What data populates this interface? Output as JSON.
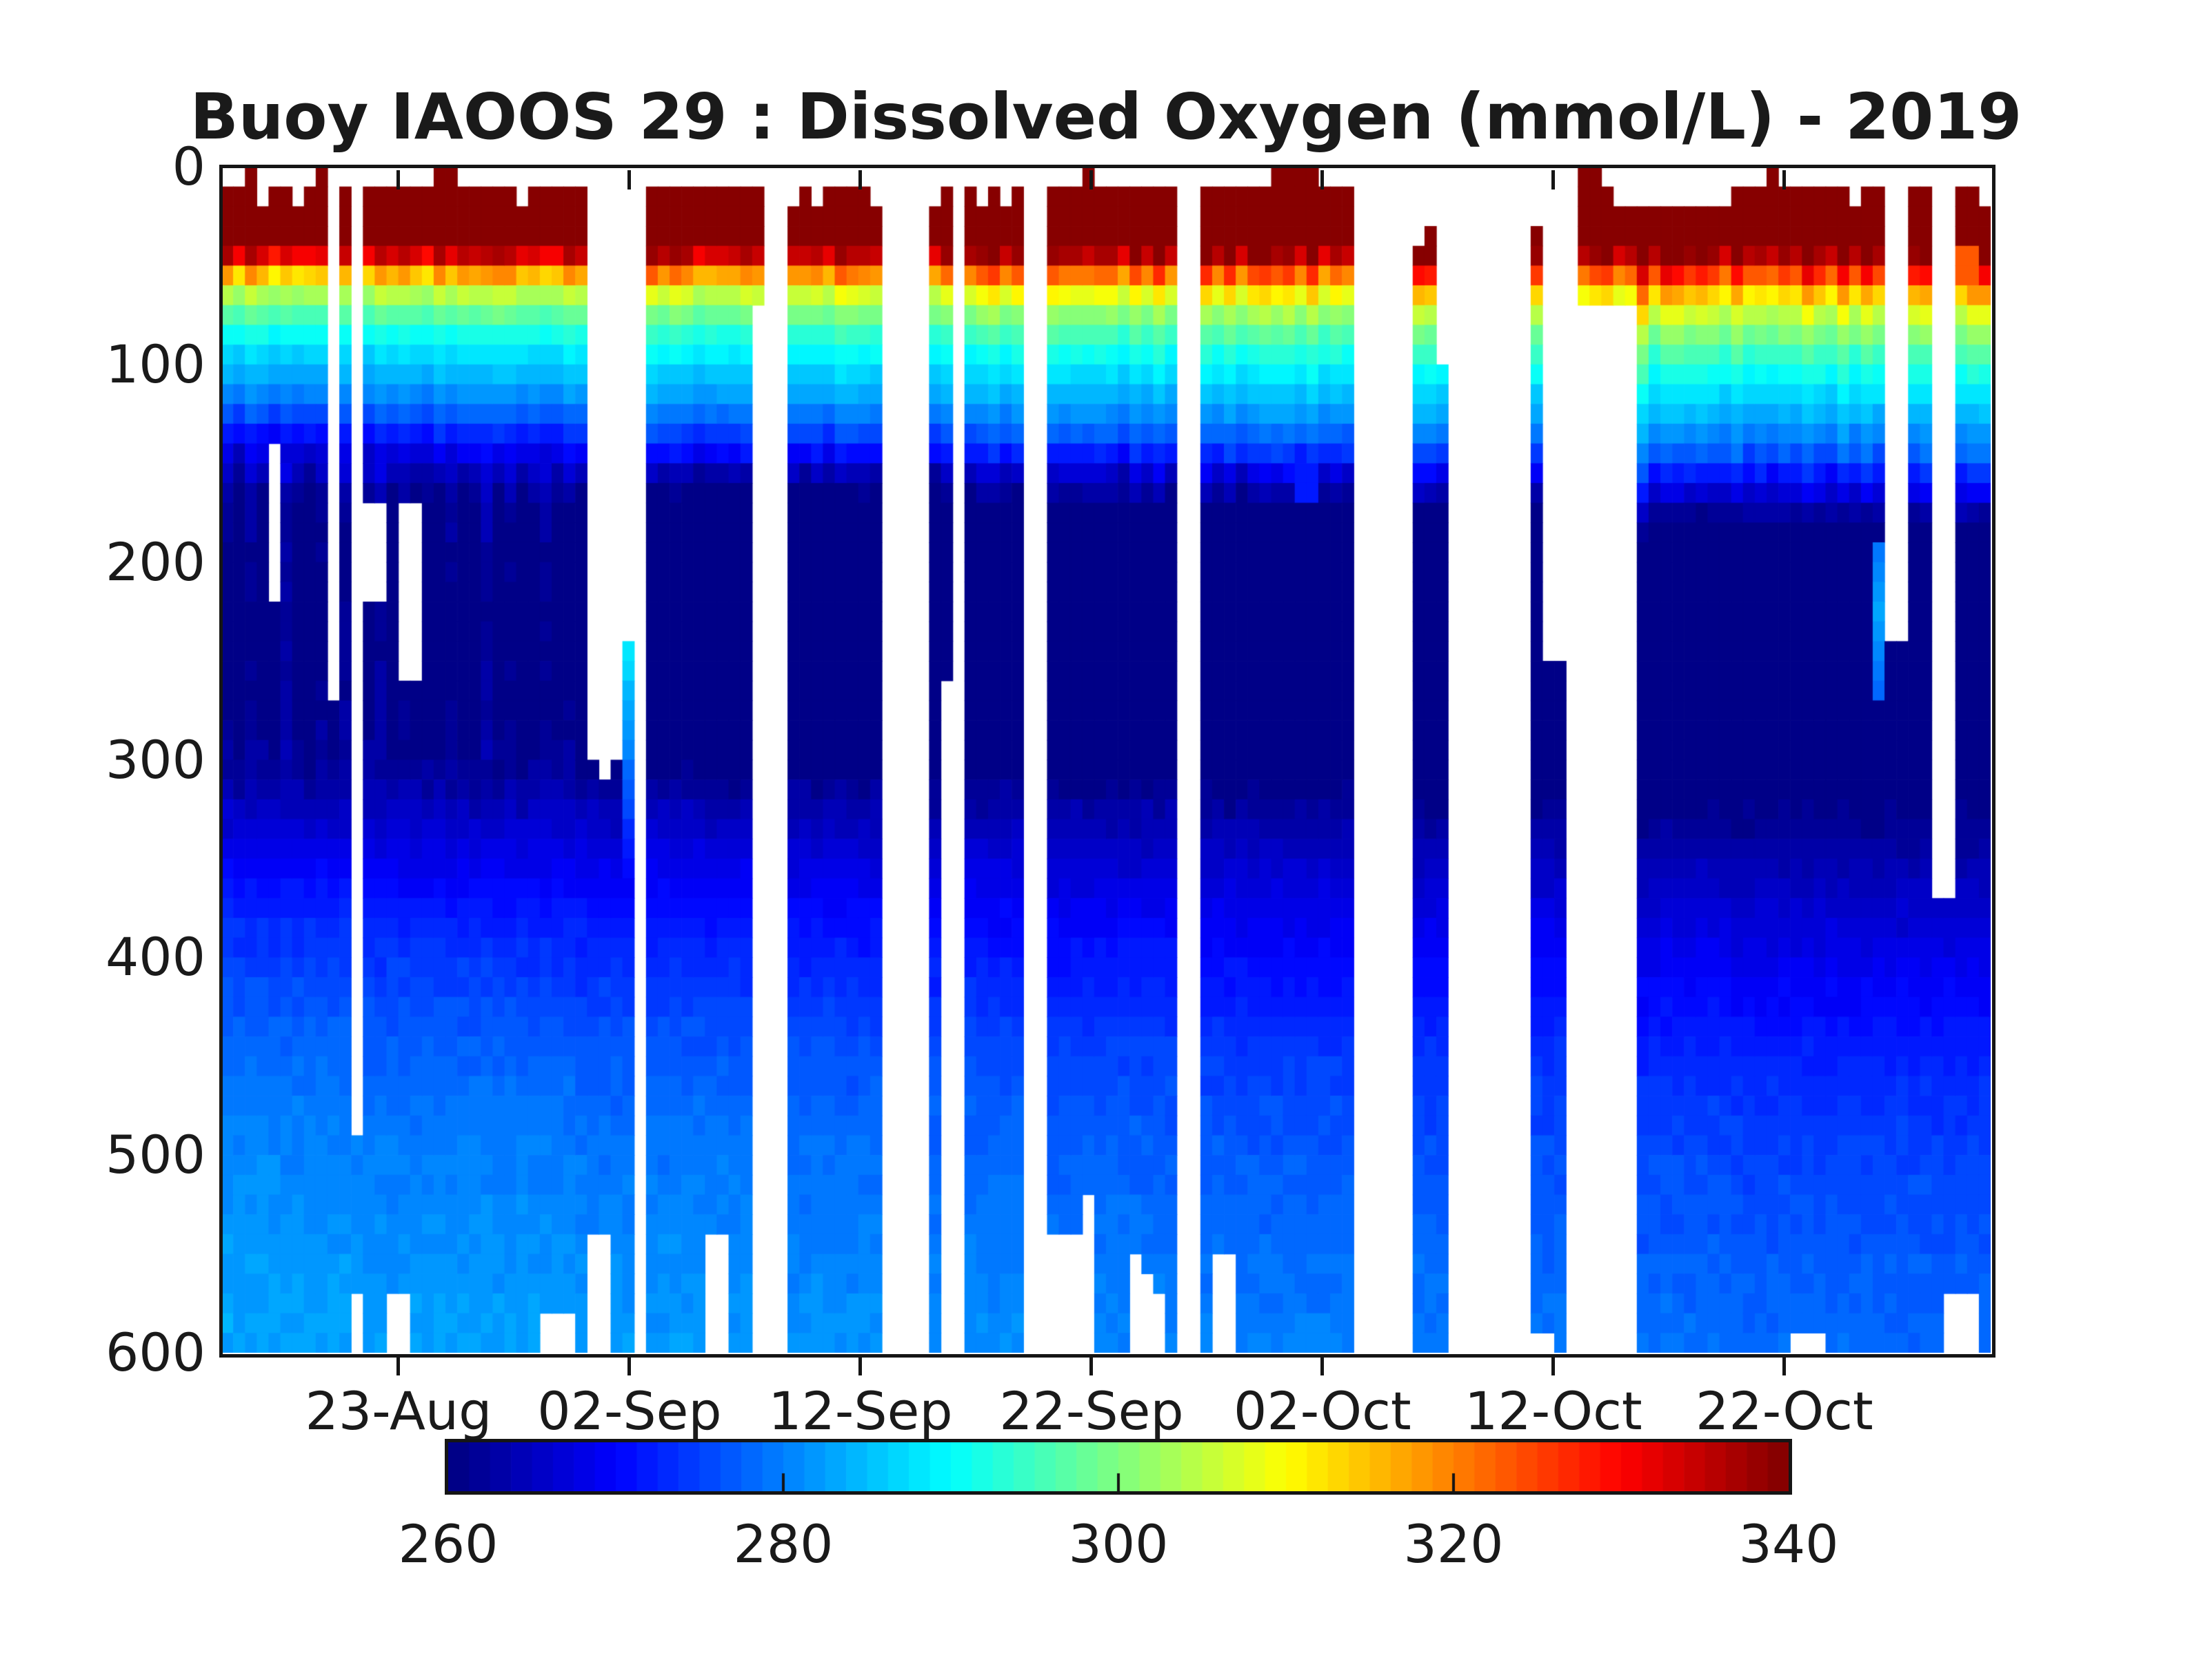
{
  "chart_data": {
    "type": "heatmap",
    "title": "Buoy IAOOS 29 : Dissolved Oxygen (mmol/L) - 2019",
    "x_axis": {
      "tick_labels": [
        "23-Aug",
        "02-Sep",
        "12-Sep",
        "22-Sep",
        "02-Oct",
        "12-Oct",
        "22-Oct"
      ],
      "tick_days": [
        0,
        10,
        20,
        30,
        40,
        50,
        60
      ],
      "start_day": -7.67,
      "end_day": 68.93
    },
    "y_axis": {
      "tick_values": [
        0,
        100,
        200,
        300,
        400,
        500,
        600
      ],
      "min": 0,
      "max": 600
    },
    "colorbar": {
      "colormap": "jet",
      "levels": 64,
      "cmin": 260,
      "cmax": 340,
      "tick_values": [
        260,
        280,
        300,
        320,
        340
      ],
      "inner_tick_values": [
        280,
        300,
        320
      ]
    },
    "base_profile": {
      "comment": "dissolved oxygen (mmol/L) vs depth (m), October reference profile",
      "depths": [
        0,
        40,
        46,
        50,
        54,
        58,
        63,
        70,
        80,
        90,
        100,
        112,
        125,
        138,
        150,
        163,
        180,
        220,
        260,
        300,
        320,
        350,
        400,
        450,
        500,
        550,
        600
      ],
      "values": [
        342,
        342,
        336,
        330,
        324,
        318,
        312,
        305,
        299,
        294,
        290,
        286,
        282,
        277,
        271,
        264,
        259,
        257,
        257,
        258.5,
        261,
        264.5,
        269,
        273,
        275.5,
        277,
        278.5
      ]
    },
    "columns_fields": "[topDepth, botDepth, depthShift, minZoneValue, deepAnomaly, gapTop, gapBot, flag] ; null = missing profile (white). flag: 2=cyan lens 245-360m, 3=cyan notch 195-265m, 4=orange blob 45-70m, 5=blue anomaly 125-165m",
    "columns": [
      [
        10,
        600,
        -15,
        260,
        4.5,
        0,
        0,
        0
      ],
      [
        6,
        600,
        -15,
        258,
        4.5,
        0,
        0,
        0
      ],
      [
        4,
        600,
        -15,
        261,
        4.5,
        0,
        0,
        0
      ],
      [
        18,
        600,
        -14,
        259,
        4.5,
        0,
        0,
        0
      ],
      [
        8,
        600,
        -14,
        258,
        4.5,
        140,
        220,
        0
      ],
      [
        8,
        600,
        -15,
        262,
        4.5,
        0,
        0,
        0
      ],
      [
        22,
        600,
        -14,
        259,
        4.5,
        0,
        0,
        0
      ],
      [
        11,
        600,
        -13,
        257,
        4.5,
        0,
        0,
        0
      ],
      [
        5,
        600,
        -14,
        260,
        4.5,
        0,
        0,
        0
      ],
      [
        273,
        600,
        -13,
        258,
        4.5,
        0,
        0,
        0
      ],
      [
        6,
        600,
        -13,
        261,
        4.5,
        0,
        0,
        0
      ],
      [
        495,
        565,
        -13,
        258,
        4,
        0,
        0,
        0
      ],
      [
        8,
        600,
        -13,
        259,
        4,
        170,
        215,
        0
      ],
      [
        10,
        600,
        -12,
        262,
        4,
        170,
        215,
        0
      ],
      [
        12,
        565,
        -12,
        258,
        4,
        0,
        0,
        0
      ],
      [
        10,
        565,
        -12,
        260,
        4,
        173,
        258,
        0
      ],
      [
        14,
        600,
        -12,
        257,
        4,
        173,
        263,
        0
      ],
      [
        8,
        600,
        -12,
        259,
        4,
        0,
        0,
        0
      ],
      [
        3,
        600,
        -12,
        258,
        4,
        0,
        0,
        0
      ],
      [
        5,
        600,
        -12,
        261,
        4,
        0,
        0,
        0
      ],
      [
        10,
        600,
        -12,
        257,
        4,
        0,
        0,
        0
      ],
      [
        14,
        600,
        -11,
        259,
        4,
        0,
        0,
        0
      ],
      [
        8,
        600,
        -12,
        262,
        4,
        0,
        0,
        0
      ],
      [
        12,
        600,
        -11,
        258,
        4,
        0,
        0,
        0
      ],
      [
        6,
        600,
        -11,
        260,
        4,
        0,
        0,
        0
      ],
      [
        16,
        600,
        -11,
        257,
        4,
        0,
        0,
        0
      ],
      [
        10,
        600,
        -10,
        259,
        4,
        0,
        0,
        0
      ],
      [
        8,
        577,
        -10,
        261,
        4,
        0,
        0,
        0
      ],
      [
        14,
        577,
        -10,
        258,
        4,
        0,
        0,
        0
      ],
      [
        6,
        577,
        -10,
        260,
        4,
        0,
        0,
        0
      ],
      [
        12,
        600,
        -9,
        257,
        3.5,
        0,
        0,
        0
      ],
      [
        300,
        536,
        -9,
        257,
        3.5,
        0,
        0,
        0
      ],
      [
        310,
        536,
        -9,
        258,
        3.5,
        0,
        0,
        0
      ],
      [
        305,
        600,
        -8,
        257,
        3.5,
        0,
        0,
        0
      ],
      [
        245,
        600,
        -8,
        257,
        3.5,
        0,
        0,
        2
      ],
      null,
      [
        12,
        600,
        -8,
        256,
        3.5,
        0,
        0,
        0
      ],
      [
        8,
        600,
        -8,
        257,
        3.5,
        0,
        0,
        0
      ],
      [
        15,
        600,
        -8,
        256,
        3.5,
        0,
        0,
        0
      ],
      [
        10,
        600,
        -8,
        257,
        3.5,
        0,
        0,
        0
      ],
      [
        6,
        600,
        -8,
        256,
        3.5,
        0,
        0,
        0
      ],
      [
        12,
        536,
        -7,
        257,
        3.5,
        0,
        0,
        0
      ],
      [
        9,
        536,
        -7,
        256,
        3.5,
        0,
        0,
        0
      ],
      [
        15,
        600,
        -7,
        257,
        3.5,
        0,
        0,
        0
      ],
      [
        11,
        600,
        -7,
        256,
        3.5,
        0,
        0,
        0
      ],
      [
        8,
        72,
        -7,
        256,
        3,
        0,
        0,
        0
      ],
      null,
      null,
      [
        18,
        600,
        -6,
        256,
        3,
        0,
        0,
        0
      ],
      [
        15,
        600,
        -6,
        255.5,
        3,
        0,
        0,
        0
      ],
      [
        17,
        600,
        -6,
        256,
        3,
        0,
        0,
        0
      ],
      [
        13,
        600,
        -6,
        255.5,
        3,
        0,
        0,
        0
      ],
      [
        8,
        600,
        -5,
        256,
        3,
        0,
        0,
        0
      ],
      [
        6,
        600,
        -4,
        255.5,
        3,
        0,
        0,
        0
      ],
      [
        15,
        600,
        -5,
        256,
        3,
        0,
        0,
        0
      ],
      [
        17,
        600,
        -5,
        255.5,
        3,
        0,
        0,
        0
      ],
      null,
      null,
      null,
      null,
      [
        17,
        600,
        -5,
        255.5,
        2.5,
        0,
        0,
        0
      ],
      [
        14,
        255,
        -5,
        256,
        2.5,
        0,
        0,
        0
      ],
      null,
      [
        12,
        600,
        -5,
        255.5,
        2.5,
        0,
        0,
        0
      ],
      [
        20,
        600,
        -5,
        256,
        2.5,
        0,
        0,
        0
      ],
      [
        10,
        600,
        -4,
        255.5,
        2.5,
        0,
        0,
        0
      ],
      [
        16,
        600,
        -4,
        256,
        2.5,
        0,
        0,
        0
      ],
      [
        12,
        600,
        -4,
        255.5,
        2.5,
        0,
        0,
        0
      ],
      null,
      null,
      [
        14,
        541,
        -3,
        255.5,
        2,
        0,
        0,
        0
      ],
      [
        10,
        541,
        -3,
        256,
        2,
        0,
        0,
        0
      ],
      [
        6,
        541,
        -2,
        255.5,
        2,
        0,
        0,
        0
      ],
      [
        5,
        522,
        -1,
        256,
        2,
        0,
        0,
        0
      ],
      [
        8,
        600,
        -2,
        255.5,
        2,
        0,
        0,
        0
      ],
      [
        12,
        600,
        -3,
        256,
        2,
        0,
        0,
        0
      ],
      [
        15,
        600,
        -3,
        255.5,
        2,
        0,
        0,
        0
      ],
      [
        10,
        550,
        -3,
        256,
        2,
        0,
        0,
        0
      ],
      [
        12,
        560,
        -3,
        255.5,
        2,
        0,
        0,
        0
      ],
      [
        8,
        567,
        -3,
        256,
        2,
        0,
        0,
        0
      ],
      [
        14,
        600,
        -3,
        255.5,
        2,
        0,
        0,
        0
      ],
      null,
      null,
      [
        12,
        600,
        -1,
        256,
        1.5,
        0,
        0,
        0
      ],
      [
        10,
        554,
        -1,
        256,
        1.5,
        0,
        0,
        0
      ],
      [
        14,
        554,
        0,
        256,
        1.5,
        0,
        0,
        0
      ],
      [
        8,
        600,
        0,
        256,
        1.5,
        0,
        0,
        0
      ],
      [
        12,
        600,
        0,
        256,
        1.5,
        0,
        0,
        0
      ],
      [
        6,
        600,
        0,
        256,
        1.5,
        0,
        0,
        0
      ],
      [
        4,
        600,
        1,
        256,
        1.5,
        0,
        0,
        0
      ],
      [
        2,
        600,
        2,
        256,
        1.5,
        0,
        0,
        0
      ],
      [
        3,
        600,
        2,
        256,
        1.5,
        0,
        0,
        5
      ],
      [
        5,
        600,
        2,
        256,
        1.5,
        0,
        0,
        5
      ],
      [
        10,
        600,
        1,
        256,
        1.5,
        0,
        0,
        0
      ],
      [
        8,
        600,
        1,
        256,
        1.5,
        0,
        0,
        0
      ],
      [
        12,
        600,
        1,
        256,
        1.5,
        0,
        0,
        0
      ],
      null,
      null,
      null,
      null,
      null,
      [
        37,
        600,
        2,
        256,
        1,
        0,
        0,
        0
      ],
      [
        30,
        600,
        2,
        256,
        1,
        0,
        0,
        0
      ],
      [
        100,
        600,
        2,
        256,
        1,
        0,
        0,
        0
      ],
      null,
      null,
      null,
      null,
      null,
      null,
      null,
      [
        30,
        585,
        3,
        255,
        1,
        0,
        0,
        0
      ],
      [
        255,
        585,
        3,
        256,
        1,
        0,
        0,
        0
      ],
      [
        255,
        600,
        3,
        256,
        1,
        0,
        0,
        0
      ],
      null,
      [
        3,
        72,
        4,
        256,
        1,
        0,
        0,
        0
      ],
      [
        3,
        72,
        4,
        256,
        1,
        0,
        0,
        0
      ],
      [
        8,
        72,
        4,
        256,
        1,
        0,
        0,
        0
      ],
      [
        22,
        72,
        4,
        256,
        1,
        0,
        0,
        0
      ],
      [
        24,
        72,
        5,
        256,
        1,
        0,
        0,
        0
      ],
      [
        22,
        600,
        15,
        256,
        0.5,
        0,
        0,
        0
      ],
      [
        22,
        600,
        7,
        256,
        0.5,
        0,
        0,
        0
      ],
      [
        20,
        600,
        7,
        256,
        0.5,
        0,
        0,
        0
      ],
      [
        24,
        600,
        7,
        256,
        0.5,
        0,
        0,
        0
      ],
      [
        22,
        600,
        8,
        256,
        0.5,
        0,
        0,
        0
      ],
      [
        20,
        600,
        8,
        256,
        0.5,
        0,
        0,
        0
      ],
      [
        25,
        600,
        8,
        256,
        0.5,
        0,
        0,
        0
      ],
      [
        22,
        600,
        8,
        256,
        0.5,
        0,
        0,
        0
      ],
      [
        15,
        600,
        8,
        256.5,
        0,
        0,
        0,
        0
      ],
      [
        8,
        600,
        8,
        256.5,
        0,
        0,
        0,
        0
      ],
      [
        12,
        600,
        8,
        257,
        0,
        0,
        0,
        0
      ],
      [
        4,
        600,
        8,
        256.5,
        0,
        0,
        0,
        0
      ],
      [
        10,
        600,
        8,
        257,
        0,
        0,
        0,
        0
      ],
      [
        14,
        585,
        8,
        256.5,
        0,
        0,
        0,
        0
      ],
      [
        12,
        585,
        8,
        257,
        0,
        0,
        0,
        0
      ],
      [
        10,
        585,
        8,
        256.5,
        0,
        0,
        0,
        0
      ],
      [
        14,
        600,
        8,
        256.5,
        0,
        0,
        0,
        0
      ],
      [
        12,
        600,
        8,
        257,
        0,
        0,
        0,
        0
      ],
      [
        16,
        600,
        8,
        256.5,
        0,
        0,
        0,
        0
      ],
      [
        10,
        600,
        8,
        257,
        0,
        0,
        0,
        0
      ],
      [
        10,
        600,
        8,
        256.5,
        0,
        0,
        0,
        3
      ],
      [
        242,
        600,
        8,
        257,
        0,
        0,
        0,
        0
      ],
      [
        242,
        595,
        8,
        256.5,
        0,
        0,
        0,
        0
      ],
      [
        12,
        600,
        8,
        257,
        0,
        0,
        0,
        0
      ],
      [
        12,
        600,
        9,
        256.5,
        0,
        0,
        0,
        0
      ],
      [
        370,
        600,
        9,
        257,
        0,
        0,
        0,
        0
      ],
      [
        370,
        566,
        9,
        256.5,
        0,
        0,
        0,
        0
      ],
      [
        15,
        566,
        9,
        257,
        0,
        0,
        0,
        4
      ],
      [
        10,
        566,
        9,
        256.5,
        0,
        0,
        0,
        4
      ],
      [
        18,
        600,
        9,
        257,
        0,
        0,
        0,
        0
      ]
    ]
  },
  "colors": {
    "axis": "#151515",
    "text": "#1a1a1a",
    "background": "#ffffff"
  }
}
